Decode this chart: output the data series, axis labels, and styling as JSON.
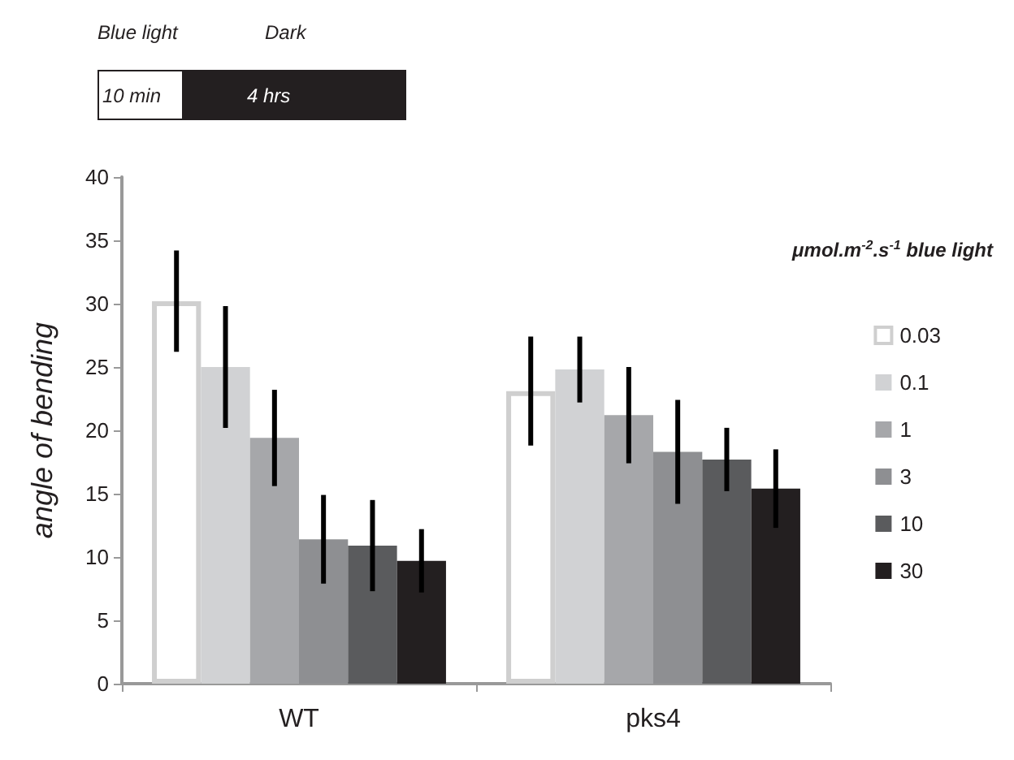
{
  "chart_data": {
    "type": "bar",
    "categories": [
      "WT",
      "pks4"
    ],
    "ylabel": "angle of bending",
    "legend_title": "μmol.m$^{-2}$.s$^{-1}$ blue light",
    "legend": "right",
    "grid": false,
    "ylim": [
      0,
      40
    ],
    "yticks": [
      0,
      5,
      10,
      15,
      20,
      25,
      30,
      35,
      40
    ],
    "annotations": [
      "Blue light",
      "Dark",
      "10 min",
      "4 hrs"
    ],
    "series": [
      {
        "name": "0.03",
        "color": "#ffffff",
        "values": [
          30.2,
          23.1
        ],
        "errors": [
          4.0,
          4.3
        ]
      },
      {
        "name": "0.1",
        "color": "#d1d2d4",
        "values": [
          25.0,
          24.8
        ],
        "errors": [
          4.8,
          2.6
        ]
      },
      {
        "name": "1",
        "color": "#a6a7aa",
        "values": [
          19.4,
          21.2
        ],
        "errors": [
          3.8,
          3.8
        ]
      },
      {
        "name": "3",
        "color": "#8e8f92",
        "values": [
          11.4,
          18.3
        ],
        "errors": [
          3.5,
          4.1
        ]
      },
      {
        "name": "10",
        "color": "#5a5b5d",
        "values": [
          10.9,
          17.7
        ],
        "errors": [
          3.6,
          2.5
        ]
      },
      {
        "name": "30",
        "color": "#231f20",
        "values": [
          9.7,
          15.4
        ],
        "errors": [
          2.5,
          3.1
        ]
      }
    ]
  }
}
